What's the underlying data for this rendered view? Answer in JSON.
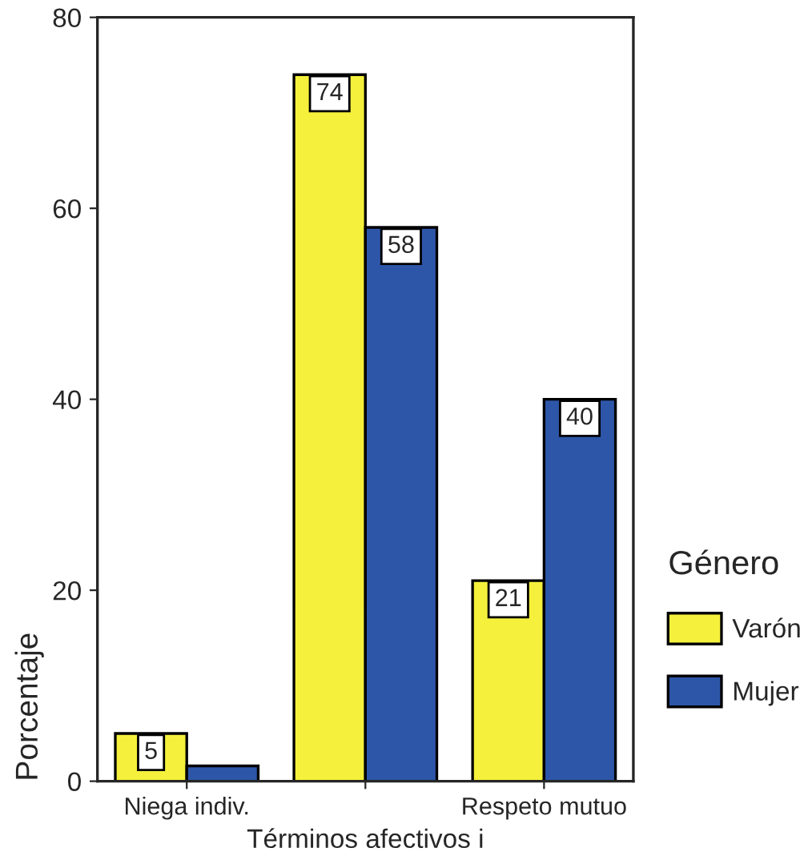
{
  "chart_data": {
    "type": "bar",
    "xlabel": "Términos afectivos i",
    "ylabel": "Porcentaje",
    "legend_title": "Género",
    "legend": "right",
    "categories": [
      "Niega indiv.",
      null,
      "Respeto mutuo"
    ],
    "series": [
      {
        "name": "Varón",
        "color": "#f5f03c",
        "values": [
          5,
          74,
          21
        ],
        "value_labels": [
          "5",
          "74",
          "21"
        ]
      },
      {
        "name": "Mujer",
        "color": "#2e56a8",
        "values": [
          1.6,
          58,
          40
        ],
        "value_labels": [
          null,
          "58",
          "40"
        ]
      }
    ],
    "ylim": [
      0,
      80
    ],
    "yticks": [
      0,
      20,
      40,
      60,
      80
    ],
    "grid": false
  }
}
